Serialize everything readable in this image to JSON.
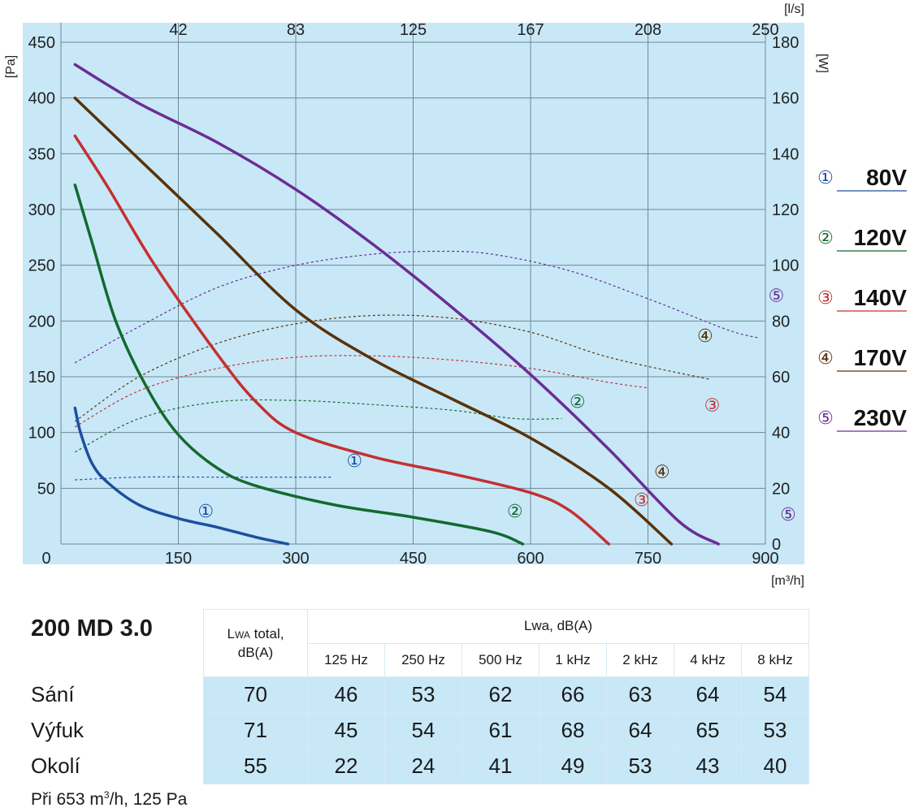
{
  "chart_data": {
    "type": "line",
    "x_unit": "[m³/h]",
    "x_ticks": [
      "0",
      "150",
      "300",
      "450",
      "600",
      "750",
      "900"
    ],
    "xlim": [
      0,
      900
    ],
    "x2_unit": "[l/s]",
    "x2_ticks": [
      "42",
      "83",
      "125",
      "167",
      "208",
      "250"
    ],
    "y_unit": "[Pa]",
    "y_ticks": [
      "50",
      "100",
      "150",
      "200",
      "250",
      "300",
      "350",
      "400",
      "450"
    ],
    "ylim": [
      0,
      450
    ],
    "y2_unit": "[W]",
    "y2_ticks": [
      "0",
      "20",
      "40",
      "60",
      "80",
      "100",
      "120",
      "140",
      "160",
      "180"
    ],
    "y2lim": [
      0,
      180
    ],
    "grid": true,
    "legend_position": "right",
    "pressure_series": [
      {
        "marker": "①",
        "color": "#1d4fa0",
        "points": [
          [
            18,
            122
          ],
          [
            25,
            100
          ],
          [
            40,
            72
          ],
          [
            60,
            55
          ],
          [
            100,
            35
          ],
          [
            150,
            23
          ],
          [
            200,
            15
          ],
          [
            250,
            6
          ],
          [
            290,
            0
          ]
        ]
      },
      {
        "marker": "②",
        "color": "#136a2e",
        "points": [
          [
            18,
            322
          ],
          [
            40,
            270
          ],
          [
            70,
            200
          ],
          [
            110,
            140
          ],
          [
            150,
            98
          ],
          [
            200,
            68
          ],
          [
            250,
            52
          ],
          [
            350,
            35
          ],
          [
            450,
            24
          ],
          [
            550,
            11
          ],
          [
            590,
            0
          ]
        ]
      },
      {
        "marker": "③",
        "color": "#c43030",
        "points": [
          [
            18,
            366
          ],
          [
            60,
            320
          ],
          [
            120,
            250
          ],
          [
            200,
            170
          ],
          [
            250,
            127
          ],
          [
            300,
            100
          ],
          [
            400,
            78
          ],
          [
            500,
            63
          ],
          [
            600,
            46
          ],
          [
            650,
            30
          ],
          [
            700,
            0
          ]
        ]
      },
      {
        "marker": "④",
        "color": "#5a3208",
        "points": [
          [
            18,
            400
          ],
          [
            100,
            345
          ],
          [
            200,
            278
          ],
          [
            300,
            210
          ],
          [
            400,
            165
          ],
          [
            500,
            130
          ],
          [
            600,
            95
          ],
          [
            700,
            50
          ],
          [
            780,
            0
          ]
        ]
      },
      {
        "marker": "⑤",
        "color": "#6b2d94",
        "points": [
          [
            18,
            430
          ],
          [
            100,
            395
          ],
          [
            200,
            360
          ],
          [
            300,
            318
          ],
          [
            400,
            268
          ],
          [
            500,
            212
          ],
          [
            600,
            152
          ],
          [
            700,
            85
          ],
          [
            790,
            20
          ],
          [
            840,
            0
          ]
        ]
      }
    ],
    "power_series": [
      {
        "marker": "①",
        "color": "#1d4fa0",
        "points": [
          [
            18,
            23
          ],
          [
            100,
            24
          ],
          [
            200,
            24
          ],
          [
            300,
            24
          ],
          [
            345,
            24
          ]
        ]
      },
      {
        "marker": "②",
        "color": "#136a2e",
        "points": [
          [
            18,
            33
          ],
          [
            100,
            45
          ],
          [
            200,
            51
          ],
          [
            300,
            51.5
          ],
          [
            400,
            50
          ],
          [
            500,
            48
          ],
          [
            580,
            45
          ],
          [
            640,
            45
          ]
        ]
      },
      {
        "marker": "③",
        "color": "#c43030",
        "points": [
          [
            18,
            42
          ],
          [
            100,
            55
          ],
          [
            200,
            63
          ],
          [
            300,
            67
          ],
          [
            400,
            67.5
          ],
          [
            500,
            66
          ],
          [
            600,
            63
          ],
          [
            700,
            58
          ],
          [
            750,
            56
          ]
        ]
      },
      {
        "marker": "④",
        "color": "#5a3208",
        "points": [
          [
            18,
            44
          ],
          [
            100,
            60
          ],
          [
            200,
            72
          ],
          [
            300,
            79
          ],
          [
            400,
            82
          ],
          [
            500,
            81
          ],
          [
            600,
            76
          ],
          [
            700,
            67
          ],
          [
            830,
            59
          ]
        ]
      },
      {
        "marker": "⑤",
        "color": "#6b2d94",
        "points": [
          [
            18,
            65
          ],
          [
            100,
            78
          ],
          [
            200,
            92
          ],
          [
            300,
            100
          ],
          [
            400,
            104
          ],
          [
            480,
            105
          ],
          [
            550,
            104
          ],
          [
            650,
            98
          ],
          [
            750,
            88
          ],
          [
            850,
            77
          ],
          [
            890,
            74
          ]
        ]
      }
    ],
    "curve_labels": [
      {
        "text": "①",
        "color": "#1d4fa0",
        "x": 185,
        "y": 30
      },
      {
        "text": "①",
        "color": "#1d4fa0",
        "x": 375,
        "y": 75
      },
      {
        "text": "②",
        "color": "#136a2e",
        "x": 580,
        "y": 30
      },
      {
        "text": "②",
        "color": "#136a2e",
        "x": 660,
        "y": 128
      },
      {
        "text": "③",
        "color": "#c43030",
        "x": 742,
        "y": 40
      },
      {
        "text": "③",
        "color": "#c43030",
        "x": 832,
        "y": 125
      },
      {
        "text": "④",
        "color": "#5a3208",
        "x": 768,
        "y": 65
      },
      {
        "text": "④",
        "color": "#5a3208",
        "x": 823,
        "y": 187
      },
      {
        "text": "⑤",
        "color": "#6b2d94",
        "x": 929,
        "y": 27
      },
      {
        "text": "⑤",
        "color": "#6b2d94",
        "x": 914,
        "y": 223
      }
    ],
    "legend": [
      {
        "marker": "①",
        "label": "80V",
        "color": "#1d4fa0"
      },
      {
        "marker": "②",
        "label": "120V",
        "color": "#136a2e"
      },
      {
        "marker": "③",
        "label": "140V",
        "color": "#c43030"
      },
      {
        "marker": "④",
        "label": "170V",
        "color": "#5a3208"
      },
      {
        "marker": "⑤",
        "label": "230V",
        "color": "#6b2d94"
      }
    ]
  },
  "model": "200 MD 3.0",
  "table": {
    "total_header_main": "L",
    "total_header_sub": "WA",
    "total_header_rest": " total,",
    "total_header_line2": "dB(A)",
    "band_header": "Lwa, dB(A)",
    "bands": [
      "125 Hz",
      "250 Hz",
      "500 Hz",
      "1 kHz",
      "2 kHz",
      "4 kHz",
      "8 kHz"
    ],
    "rows": [
      {
        "label": "Sání",
        "values": [
          "70",
          "46",
          "53",
          "62",
          "66",
          "63",
          "64",
          "54"
        ]
      },
      {
        "label": "Výfuk",
        "values": [
          "71",
          "45",
          "54",
          "61",
          "68",
          "64",
          "65",
          "53"
        ]
      },
      {
        "label": "Okolí",
        "values": [
          "55",
          "22",
          "24",
          "41",
          "49",
          "53",
          "43",
          "40"
        ]
      }
    ]
  },
  "note_prefix": "Při 653 m",
  "note_sup": "3",
  "note_suffix": "/h, 125 Pa"
}
